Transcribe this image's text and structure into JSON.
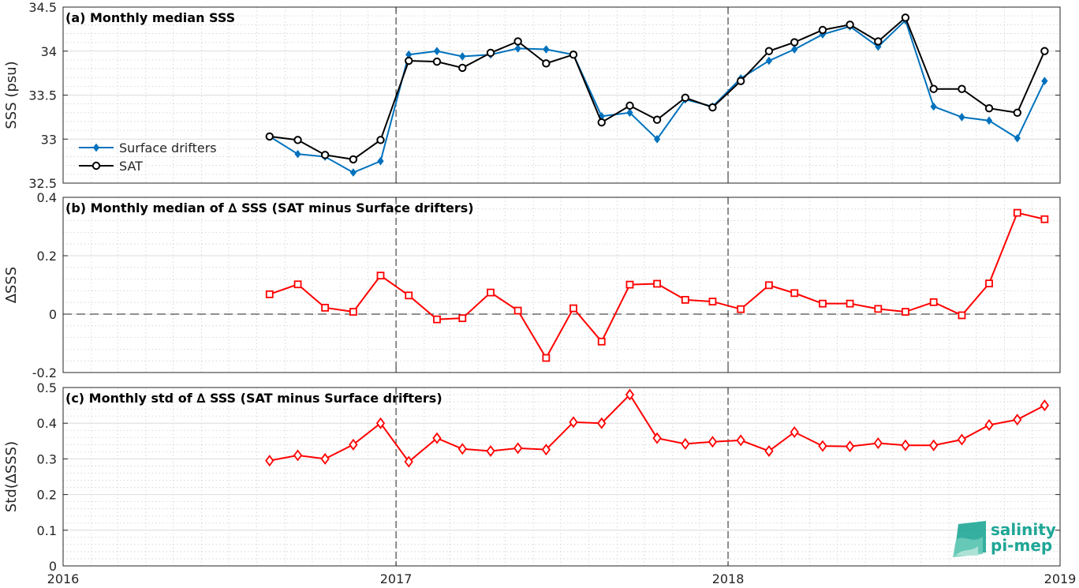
{
  "chart_data": [
    {
      "type": "line",
      "title": "(a) Monthly median SSS",
      "ylabel": "SSS (psu)",
      "xlim": [
        "2016-01-01",
        "2019-01-01"
      ],
      "ylim": [
        32.5,
        34.5
      ],
      "yticks": [
        32.5,
        33,
        33.5,
        34,
        34.5
      ],
      "ytick_labels": [
        "32.5",
        "33",
        "33.5",
        "34",
        "34.5"
      ],
      "grid": true,
      "legend_position": "lower-left",
      "x": [
        "2016-08-15",
        "2016-09-15",
        "2016-10-15",
        "2016-11-15",
        "2016-12-15",
        "2017-01-15",
        "2017-02-15",
        "2017-03-15",
        "2017-04-15",
        "2017-05-15",
        "2017-06-15",
        "2017-07-15",
        "2017-08-15",
        "2017-09-15",
        "2017-10-15",
        "2017-11-15",
        "2017-12-15",
        "2018-01-15",
        "2018-02-15",
        "2018-03-15",
        "2018-04-15",
        "2018-05-15",
        "2018-06-15",
        "2018-07-15",
        "2018-08-15",
        "2018-09-15",
        "2018-10-15",
        "2018-11-15",
        "2018-12-15"
      ],
      "series": [
        {
          "name": "Surface drifters",
          "color": "#0072bd",
          "marker": "diamond-filled",
          "values": [
            33.03,
            32.83,
            32.8,
            32.62,
            32.75,
            33.96,
            34.0,
            33.94,
            33.96,
            34.03,
            34.02,
            33.96,
            33.26,
            33.3,
            33.0,
            33.45,
            33.37,
            33.69,
            33.89,
            34.02,
            34.19,
            34.28,
            34.05,
            34.35,
            33.37,
            33.25,
            33.21,
            33.01,
            33.66
          ]
        },
        {
          "name": "SAT",
          "color": "#000000",
          "marker": "circle-open",
          "values": [
            33.03,
            32.99,
            32.82,
            32.77,
            32.99,
            33.89,
            33.88,
            33.81,
            33.98,
            34.11,
            33.86,
            33.96,
            33.19,
            33.38,
            33.22,
            33.47,
            33.36,
            33.66,
            34.0,
            34.1,
            34.24,
            34.3,
            34.11,
            34.38,
            33.57,
            33.57,
            33.35,
            33.3,
            34.0
          ]
        }
      ]
    },
    {
      "type": "line",
      "title": "(b) Monthly median of ∆ SSS (SAT minus Surface drifters)",
      "ylabel": "∆SSS",
      "xlim": [
        "2016-01-01",
        "2019-01-01"
      ],
      "ylim": [
        -0.2,
        0.4
      ],
      "yticks": [
        -0.2,
        0,
        0.2,
        0.4
      ],
      "ytick_labels": [
        "-0.2",
        "0",
        "0.2",
        "0.4"
      ],
      "grid": true,
      "x": [
        "2016-08-15",
        "2016-09-15",
        "2016-10-15",
        "2016-11-15",
        "2016-12-15",
        "2017-01-15",
        "2017-02-15",
        "2017-03-15",
        "2017-04-15",
        "2017-05-15",
        "2017-06-15",
        "2017-07-15",
        "2017-08-15",
        "2017-09-15",
        "2017-10-15",
        "2017-11-15",
        "2017-12-15",
        "2018-01-15",
        "2018-02-15",
        "2018-03-15",
        "2018-04-15",
        "2018-05-15",
        "2018-06-15",
        "2018-07-15",
        "2018-08-15",
        "2018-09-15",
        "2018-10-15",
        "2018-11-15",
        "2018-12-15"
      ],
      "series": [
        {
          "color": "#ff0000",
          "marker": "square-open",
          "values": [
            0.068,
            0.102,
            0.022,
            0.008,
            0.132,
            0.064,
            -0.018,
            -0.014,
            0.074,
            0.012,
            -0.15,
            0.02,
            -0.094,
            0.101,
            0.104,
            0.049,
            0.043,
            0.017,
            0.099,
            0.072,
            0.036,
            0.036,
            0.018,
            0.008,
            0.041,
            -0.004,
            0.105,
            0.347,
            0.325
          ]
        }
      ]
    },
    {
      "type": "line",
      "title": "(c) Monthly std of ∆ SSS (SAT minus Surface drifters)",
      "ylabel": "Std(∆SSS)",
      "xlim": [
        "2016-01-01",
        "2019-01-01"
      ],
      "ylim": [
        0,
        0.5
      ],
      "yticks": [
        0,
        0.1,
        0.2,
        0.3,
        0.4,
        0.5
      ],
      "ytick_labels": [
        "0",
        "0.1",
        "0.2",
        "0.3",
        "0.4",
        "0.5"
      ],
      "xticks": [
        "2016-01-01",
        "2017-01-01",
        "2018-01-01",
        "2019-01-01"
      ],
      "xtick_labels": [
        "2016",
        "2017",
        "2018",
        "2019"
      ],
      "grid": true,
      "x": [
        "2016-08-15",
        "2016-09-15",
        "2016-10-15",
        "2016-11-15",
        "2016-12-15",
        "2017-01-15",
        "2017-02-15",
        "2017-03-15",
        "2017-04-15",
        "2017-05-15",
        "2017-06-15",
        "2017-07-15",
        "2017-08-15",
        "2017-09-15",
        "2017-10-15",
        "2017-11-15",
        "2017-12-15",
        "2018-01-15",
        "2018-02-15",
        "2018-03-15",
        "2018-04-15",
        "2018-05-15",
        "2018-06-15",
        "2018-07-15",
        "2018-08-15",
        "2018-09-15",
        "2018-10-15",
        "2018-11-15",
        "2018-12-15"
      ],
      "series": [
        {
          "color": "#ff0000",
          "marker": "diamond-open",
          "values": [
            0.295,
            0.31,
            0.3,
            0.34,
            0.4,
            0.292,
            0.358,
            0.328,
            0.322,
            0.33,
            0.326,
            0.403,
            0.4,
            0.48,
            0.358,
            0.342,
            0.348,
            0.352,
            0.322,
            0.375,
            0.336,
            0.335,
            0.344,
            0.338,
            0.338,
            0.354,
            0.395,
            0.41,
            0.45
          ]
        }
      ]
    }
  ],
  "legend": [
    {
      "label": "Surface drifters",
      "color": "#0072bd",
      "marker": "diamond-filled"
    },
    {
      "label": "SAT",
      "color": "#000000",
      "marker": "circle-open"
    }
  ],
  "logo": {
    "line1": "salinity",
    "line2": "pi-mep",
    "color": "#1fa696"
  }
}
